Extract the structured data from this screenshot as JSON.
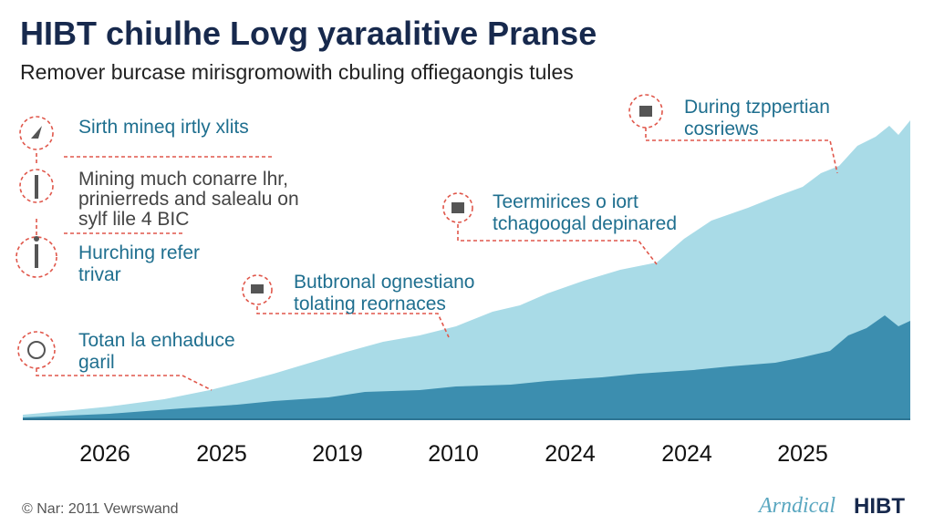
{
  "header": {
    "title": "HIBT chiulhe Lovg yaraalitive Pranse",
    "subtitle": "Remover burcase mirisgromowith cbuling offiegaongis tules"
  },
  "sidebar": {
    "items": [
      {
        "lines": [
          "Sirth mineq irtly xlits"
        ]
      },
      {
        "lines": [
          "Mining much conarre lhr,",
          "prinierreds and salealu on",
          "sylf lile 4 BIC"
        ]
      },
      {
        "lines": [
          "Hurching refer",
          "trivar"
        ]
      },
      {
        "lines": [
          "Totan la enhaduce",
          "garil"
        ]
      }
    ]
  },
  "annotations": [
    {
      "lines": [
        "Butbronal ognestiano",
        "tolating reornaces"
      ]
    },
    {
      "lines": [
        "Teermirices o iort",
        "tchagoogal depinared"
      ]
    },
    {
      "lines": [
        "During tzppertian",
        "cosriews"
      ]
    }
  ],
  "x_axis": {
    "labels": [
      "2026",
      "2025",
      "2019",
      "2010",
      "2024",
      "2024",
      "2025"
    ]
  },
  "footer": {
    "credit": "© Nar: 2011 Vewrswand",
    "brand": "Arndical",
    "logo": "HIBT"
  }
}
